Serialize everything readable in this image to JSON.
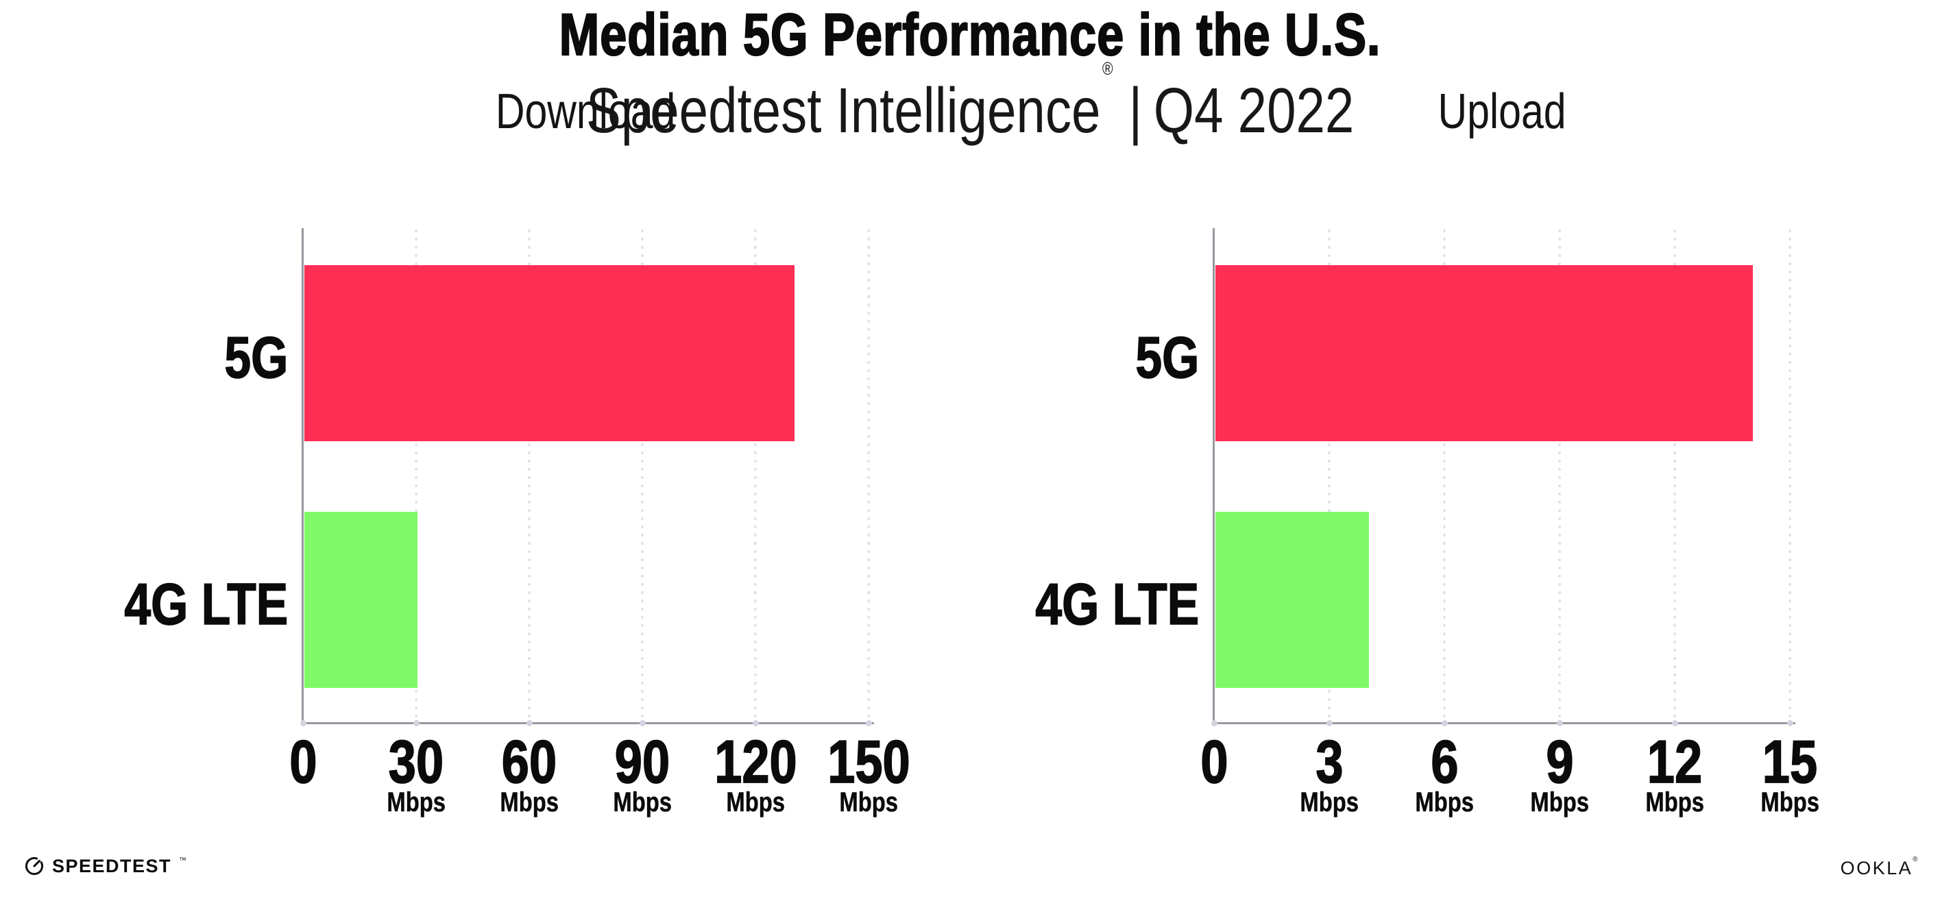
{
  "header": {
    "title": "Median 5G Performance in the U.S.",
    "subtitle_brand": "Speedtest Intelligence",
    "subtitle_registered": "®",
    "subtitle_separator": "|",
    "subtitle_period": "Q4 2022"
  },
  "chart_data": [
    {
      "type": "bar",
      "orientation": "horizontal",
      "title": "Download",
      "categories": [
        "5G",
        "4G LTE"
      ],
      "values": [
        130,
        30
      ],
      "unit": "Mbps",
      "xlim": [
        0,
        150
      ],
      "xticks": [
        0,
        30,
        60,
        90,
        120,
        150
      ],
      "bar_colors": [
        "#ff2e55",
        "#7ffa66"
      ],
      "grid": "vertical-dotted",
      "legend": "none"
    },
    {
      "type": "bar",
      "orientation": "horizontal",
      "title": "Upload",
      "categories": [
        "5G",
        "4G LTE"
      ],
      "values": [
        14,
        4
      ],
      "unit": "Mbps",
      "xlim": [
        0,
        15
      ],
      "xticks": [
        0,
        3,
        6,
        9,
        12,
        15
      ],
      "bar_colors": [
        "#ff2e55",
        "#7ffa66"
      ],
      "grid": "vertical-dotted",
      "legend": "none"
    }
  ],
  "footer": {
    "speedtest_label": "SPEEDTEST",
    "speedtest_mark": "™",
    "ookla_label": "OOKLA",
    "ookla_mark": "®"
  },
  "colors": {
    "bar_5g": "#ff2e55",
    "bar_4g_lte": "#7ffa66",
    "axis": "#97979f",
    "gridline": "#e1e1ec",
    "text": "#0b0b0c",
    "background": "#ffffff"
  }
}
